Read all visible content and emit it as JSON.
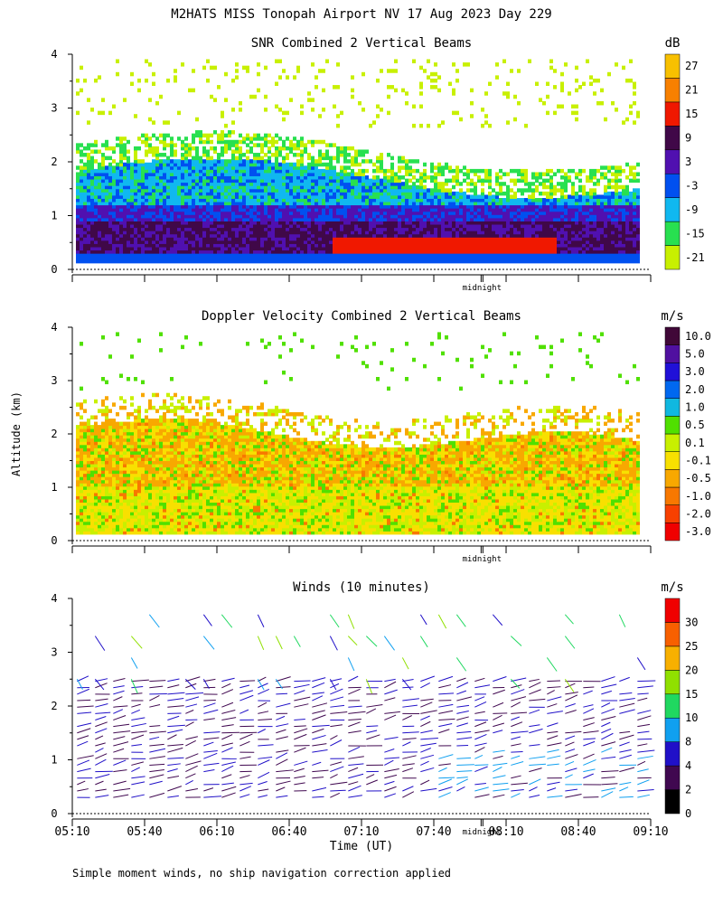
{
  "page_title": "M2HATS MISS Tonopah Airport NV  17 Aug 2023 Day 229",
  "y_axis_label": "Altitude (km)",
  "x_axis_label": "Time (UT)",
  "footnote": "Simple moment winds, no ship navigation correction applied",
  "midnight_label": "midnight",
  "chart_data": [
    {
      "type": "heatmap",
      "title": "SNR Combined 2 Vertical Beams",
      "units": "dB",
      "ylim": [
        0,
        4
      ],
      "yticks": [
        "0",
        "1",
        "2",
        "3",
        "4"
      ],
      "color_levels": [
        {
          "value": "-21",
          "color": "#c8f000"
        },
        {
          "value": "-15",
          "color": "#28e050"
        },
        {
          "value": "-9",
          "color": "#10b8f0"
        },
        {
          "value": "-3",
          "color": "#0050f0"
        },
        {
          "value": "3",
          "color": "#5010b0"
        },
        {
          "value": "9",
          "color": "#400848"
        },
        {
          "value": "15",
          "color": "#f01800"
        },
        {
          "value": "21",
          "color": "#f88000"
        },
        {
          "value": "27",
          "color": "#f8c000"
        }
      ]
    },
    {
      "type": "heatmap",
      "title": "Doppler Velocity Combined 2 Vertical Beams",
      "units": "m/s",
      "ylim": [
        0,
        4
      ],
      "yticks": [
        "0",
        "1",
        "2",
        "3",
        "4"
      ],
      "color_levels": [
        {
          "value": "-3.0",
          "color": "#f00000"
        },
        {
          "value": "-2.0",
          "color": "#f84000"
        },
        {
          "value": "-1.0",
          "color": "#f87800"
        },
        {
          "value": "-0.5",
          "color": "#f8a800"
        },
        {
          "value": "-0.1",
          "color": "#f8e000"
        },
        {
          "value": "0.1",
          "color": "#c8f000"
        },
        {
          "value": "0.5",
          "color": "#50e000"
        },
        {
          "value": "1.0",
          "color": "#10b8e0"
        },
        {
          "value": "2.0",
          "color": "#0068f0"
        },
        {
          "value": "3.0",
          "color": "#2010d8"
        },
        {
          "value": "5.0",
          "color": "#5010a0"
        },
        {
          "value": "10.0",
          "color": "#400838"
        }
      ]
    },
    {
      "type": "scatter",
      "title": "Winds (10 minutes)",
      "units": "m/s",
      "ylim": [
        0,
        4
      ],
      "yticks": [
        "0",
        "1",
        "2",
        "3",
        "4"
      ],
      "color_levels": [
        {
          "value": "0",
          "color": "#000000"
        },
        {
          "value": "2",
          "color": "#400850"
        },
        {
          "value": "4",
          "color": "#2010c8"
        },
        {
          "value": "8",
          "color": "#10a0f0"
        },
        {
          "value": "10",
          "color": "#20d860"
        },
        {
          "value": "15",
          "color": "#90e000"
        },
        {
          "value": "20",
          "color": "#f8b000"
        },
        {
          "value": "25",
          "color": "#f86000"
        },
        {
          "value": "30",
          "color": "#f00000"
        }
      ]
    }
  ],
  "time_axis": {
    "ticks": [
      "05:10",
      "05:40",
      "06:10",
      "06:40",
      "07:10",
      "07:40",
      "08:10",
      "08:40",
      "09:10"
    ],
    "start_minutes": 310,
    "end_minutes": 550,
    "midnight_minutes": 480
  }
}
